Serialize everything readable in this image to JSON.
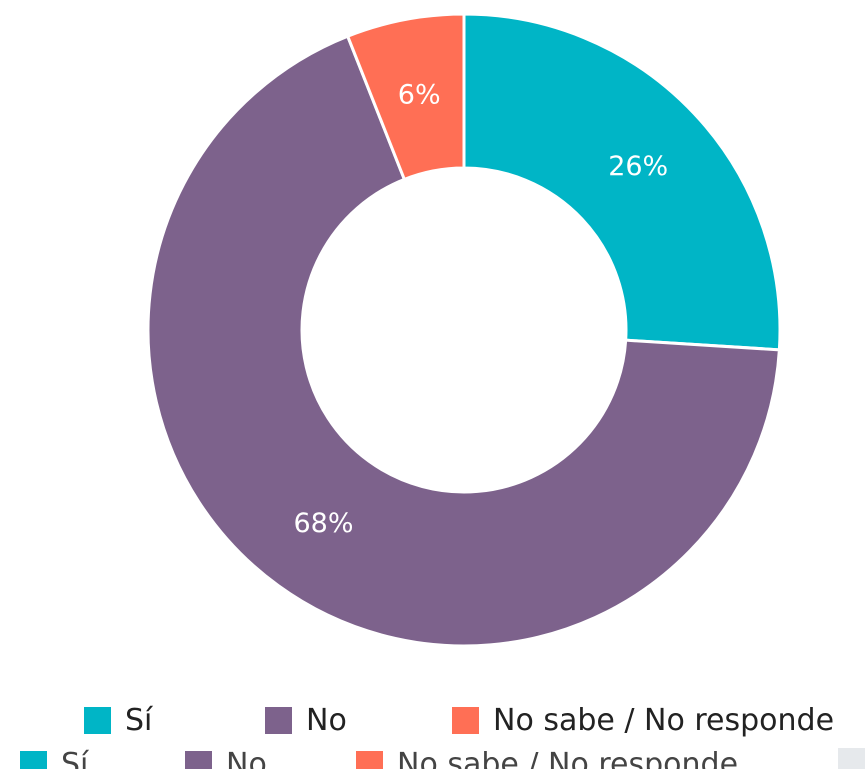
{
  "chart_data": {
    "type": "pie",
    "variant": "donut",
    "title": "",
    "slices": [
      {
        "label": "Sí",
        "value": 26,
        "display": "26%",
        "color": "#00b5c6"
      },
      {
        "label": "No",
        "value": 68,
        "display": "68%",
        "color": "#7d628c"
      },
      {
        "label": "No sabe / No responde",
        "value": 6,
        "display": "6%",
        "color": "#ff6f55"
      }
    ],
    "start_angle_deg": 0,
    "direction": "clockwise",
    "legend_position": "bottom"
  }
}
